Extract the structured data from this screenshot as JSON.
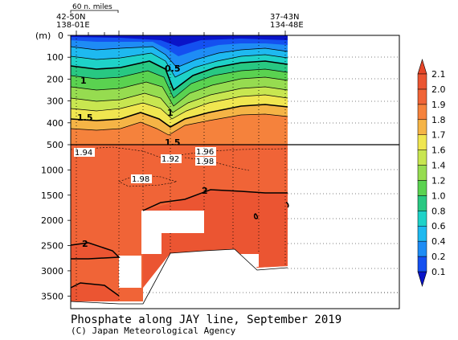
{
  "chart_data": {
    "type": "heatmap",
    "title": "Phosphate along JAY line, September 2019",
    "credit": "(C) Japan Meteorological Agency",
    "ylabel": "(m)",
    "scale_label": "60 n. miles",
    "stations": {
      "left": [
        "42-50N",
        "138-01E"
      ],
      "right": [
        "37-43N",
        "134-48E"
      ]
    },
    "y_ticks_upper": [
      0,
      100,
      200,
      300,
      400,
      500
    ],
    "y_ticks_lower": [
      1000,
      1500,
      2000,
      2500,
      3000,
      3500
    ],
    "ylim_upper": [
      0,
      500
    ],
    "ylim_lower": [
      500,
      3750
    ],
    "grid": true,
    "colorbar": {
      "levels": [
        "0.1",
        "0.2",
        "0.4",
        "0.6",
        "0.8",
        "1.0",
        "1.2",
        "1.4",
        "1.6",
        "1.7",
        "1.8",
        "1.9",
        "2.0",
        "2.1"
      ],
      "colors": [
        "#0a14c8",
        "#1450f0",
        "#1e8cf5",
        "#1eb9f0",
        "#1ed2c8",
        "#28c882",
        "#5ad250",
        "#96dc50",
        "#c8e650",
        "#f0e650",
        "#f5b446",
        "#f5823c",
        "#f06437",
        "#eb5532",
        "#e64628"
      ],
      "placement": "right"
    },
    "contour_labels_upper": [
      "0.5",
      "1",
      "1.5",
      "1",
      "1.5"
    ],
    "contour_labels_lower": [
      "1.94",
      "1.92",
      "1.96",
      "1.98",
      "1.98",
      "2",
      "2"
    ]
  }
}
